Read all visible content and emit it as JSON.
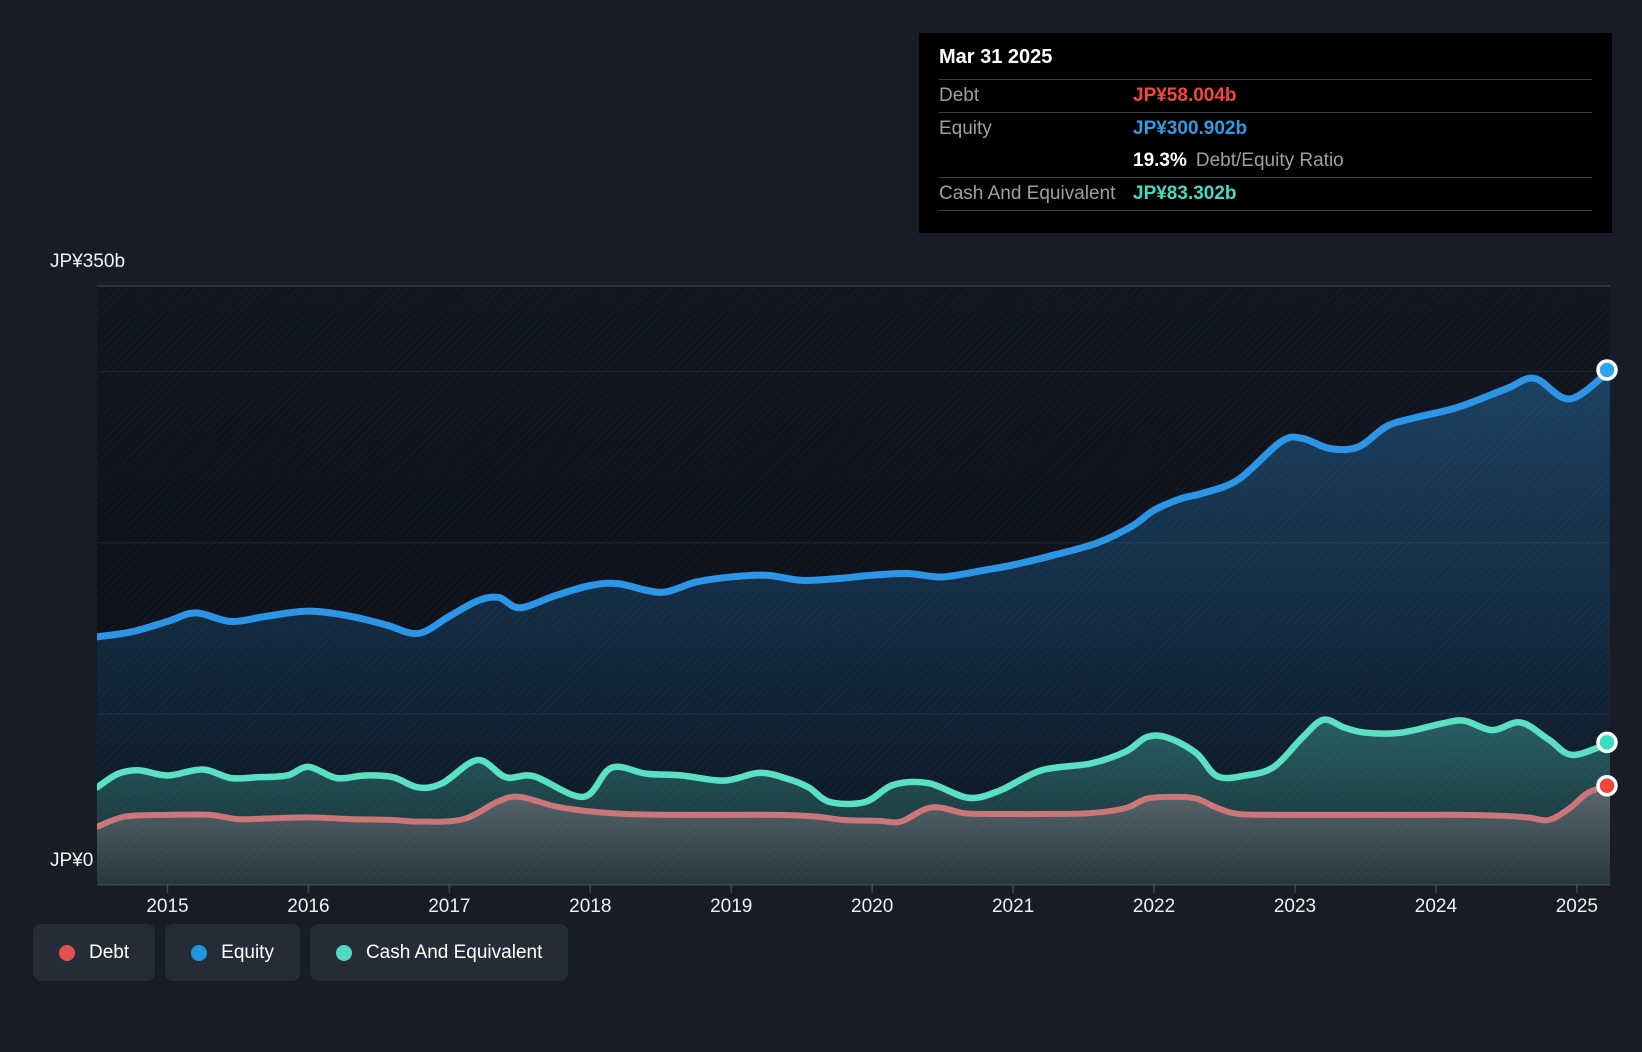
{
  "page": {
    "background": "#171c26"
  },
  "tooltip": {
    "title": "Mar 31 2025",
    "debt": {
      "label": "Debt",
      "value": "JP¥58.004b",
      "color": "#f5453d"
    },
    "equity": {
      "label": "Equity",
      "value": "JP¥300.902b",
      "color": "#2e9be5"
    },
    "ratio": {
      "value": "19.3%",
      "label": "Debt/Equity Ratio"
    },
    "cash": {
      "label": "Cash And Equivalent",
      "value": "JP¥83.302b",
      "color": "#43dcc0"
    }
  },
  "legend": {
    "items": [
      {
        "id": "debt",
        "label": "Debt",
        "color": "#e4524d"
      },
      {
        "id": "equity",
        "label": "Equity",
        "color": "#2196dd"
      },
      {
        "id": "cash",
        "label": "Cash And Equivalent",
        "color": "#4fd9bf"
      }
    ]
  },
  "chart_data": {
    "type": "area",
    "title": "",
    "xlabel": "",
    "ylabel": "JP¥ billions",
    "x_range": [
      2014.5,
      2025.235
    ],
    "y_range": [
      0,
      350
    ],
    "grid_values": [
      350,
      300,
      200,
      100
    ],
    "y_axis_labels": [
      {
        "value": 350,
        "text": "JP¥350b"
      },
      {
        "value": 0,
        "text": "JP¥0"
      }
    ],
    "x_ticks": [
      {
        "value": 2015,
        "label": "2015"
      },
      {
        "value": 2016,
        "label": "2016"
      },
      {
        "value": 2017,
        "label": "2017"
      },
      {
        "value": 2018,
        "label": "2018"
      },
      {
        "value": 2019,
        "label": "2019"
      },
      {
        "value": 2020,
        "label": "2020"
      },
      {
        "value": 2021,
        "label": "2021"
      },
      {
        "value": 2022,
        "label": "2022"
      },
      {
        "value": 2023,
        "label": "2023"
      },
      {
        "value": 2024,
        "label": "2024"
      },
      {
        "value": 2025,
        "label": "2025"
      }
    ],
    "series": [
      {
        "name": "Equity",
        "id": "equity",
        "line_color": "#2d95e5",
        "dot_color": "#2ea3f2",
        "fill_top": "rgba(46,150,230,0.34)",
        "fill_bottom": "rgba(46,150,230,0.02)",
        "line_width": 7,
        "points": [
          [
            2014.5,
            145
          ],
          [
            2014.75,
            148
          ],
          [
            2015,
            154
          ],
          [
            2015.2,
            159
          ],
          [
            2015.45,
            154
          ],
          [
            2015.7,
            157
          ],
          [
            2016,
            160
          ],
          [
            2016.3,
            157
          ],
          [
            2016.55,
            152
          ],
          [
            2016.78,
            147
          ],
          [
            2017,
            157
          ],
          [
            2017.2,
            166
          ],
          [
            2017.35,
            168
          ],
          [
            2017.5,
            162
          ],
          [
            2017.75,
            169
          ],
          [
            2018,
            175
          ],
          [
            2018.2,
            176
          ],
          [
            2018.5,
            171
          ],
          [
            2018.75,
            177
          ],
          [
            2019,
            180
          ],
          [
            2019.25,
            181
          ],
          [
            2019.5,
            178
          ],
          [
            2019.75,
            179
          ],
          [
            2020,
            181
          ],
          [
            2020.25,
            182
          ],
          [
            2020.5,
            180
          ],
          [
            2020.8,
            184
          ],
          [
            2021,
            187
          ],
          [
            2021.3,
            193
          ],
          [
            2021.6,
            200
          ],
          [
            2021.85,
            210
          ],
          [
            2022,
            219
          ],
          [
            2022.2,
            226
          ],
          [
            2022.35,
            229
          ],
          [
            2022.6,
            237
          ],
          [
            2022.9,
            259
          ],
          [
            2023.05,
            261
          ],
          [
            2023.25,
            255
          ],
          [
            2023.45,
            256
          ],
          [
            2023.65,
            268
          ],
          [
            2023.85,
            273
          ],
          [
            2024.15,
            279
          ],
          [
            2024.5,
            290
          ],
          [
            2024.7,
            296
          ],
          [
            2024.95,
            284
          ],
          [
            2025.235,
            300.902
          ]
        ]
      },
      {
        "name": "Cash And Equivalent",
        "id": "cash",
        "line_color": "#5ce0c2",
        "dot_color": "#3adcc0",
        "fill_top": "rgba(90,224,198,0.32)",
        "fill_bottom": "rgba(90,224,198,0.10)",
        "line_width": 6.5,
        "points": [
          [
            2014.5,
            57
          ],
          [
            2014.65,
            65
          ],
          [
            2014.8,
            67
          ],
          [
            2015,
            64
          ],
          [
            2015.25,
            67.5
          ],
          [
            2015.45,
            62.5
          ],
          [
            2015.65,
            63
          ],
          [
            2015.85,
            64
          ],
          [
            2016,
            69
          ],
          [
            2016.2,
            62.5
          ],
          [
            2016.4,
            64
          ],
          [
            2016.6,
            63
          ],
          [
            2016.78,
            57
          ],
          [
            2016.95,
            59.5
          ],
          [
            2017.2,
            73
          ],
          [
            2017.4,
            63
          ],
          [
            2017.6,
            63.5
          ],
          [
            2017.95,
            51.5
          ],
          [
            2018.15,
            68.5
          ],
          [
            2018.4,
            65
          ],
          [
            2018.65,
            64
          ],
          [
            2018.95,
            61
          ],
          [
            2019.2,
            65.5
          ],
          [
            2019.4,
            62
          ],
          [
            2019.55,
            57
          ],
          [
            2019.7,
            48.5
          ],
          [
            2019.95,
            48.5
          ],
          [
            2020.15,
            58.5
          ],
          [
            2020.4,
            59.5
          ],
          [
            2020.68,
            51
          ],
          [
            2020.9,
            55
          ],
          [
            2021.2,
            67
          ],
          [
            2021.55,
            71
          ],
          [
            2021.8,
            78
          ],
          [
            2021.95,
            86.5
          ],
          [
            2022.1,
            86
          ],
          [
            2022.3,
            77
          ],
          [
            2022.45,
            63.5
          ],
          [
            2022.65,
            64
          ],
          [
            2022.85,
            69
          ],
          [
            2023.05,
            86
          ],
          [
            2023.2,
            96.5
          ],
          [
            2023.35,
            92
          ],
          [
            2023.5,
            89
          ],
          [
            2023.75,
            89
          ],
          [
            2024.05,
            94.5
          ],
          [
            2024.2,
            96
          ],
          [
            2024.4,
            90.5
          ],
          [
            2024.6,
            95
          ],
          [
            2024.8,
            85
          ],
          [
            2024.97,
            76
          ],
          [
            2025.235,
            83.302
          ]
        ]
      },
      {
        "name": "Debt",
        "id": "debt",
        "line_color": "#cb7678",
        "dot_color": "#f2423c",
        "fill_top": "rgba(230,170,175,0.30)",
        "fill_bottom": "rgba(185,165,175,0.12)",
        "line_width": 6,
        "points": [
          [
            2014.5,
            34
          ],
          [
            2014.7,
            40
          ],
          [
            2015,
            41
          ],
          [
            2015.3,
            41
          ],
          [
            2015.5,
            38.5
          ],
          [
            2015.75,
            39
          ],
          [
            2016,
            39.5
          ],
          [
            2016.3,
            38.5
          ],
          [
            2016.6,
            38
          ],
          [
            2016.8,
            37
          ],
          [
            2017.1,
            38.5
          ],
          [
            2017.35,
            49
          ],
          [
            2017.5,
            51.5
          ],
          [
            2017.75,
            46
          ],
          [
            2018,
            43
          ],
          [
            2018.25,
            41.5
          ],
          [
            2018.6,
            41
          ],
          [
            2019,
            41
          ],
          [
            2019.35,
            41
          ],
          [
            2019.6,
            40
          ],
          [
            2019.8,
            38
          ],
          [
            2020.05,
            37.5
          ],
          [
            2020.2,
            37
          ],
          [
            2020.38,
            44.5
          ],
          [
            2020.5,
            45
          ],
          [
            2020.65,
            42
          ],
          [
            2020.85,
            41.5
          ],
          [
            2021.2,
            41.5
          ],
          [
            2021.55,
            42
          ],
          [
            2021.8,
            45
          ],
          [
            2021.95,
            50.5
          ],
          [
            2022.15,
            51.5
          ],
          [
            2022.3,
            50.5
          ],
          [
            2022.45,
            45
          ],
          [
            2022.6,
            41.5
          ],
          [
            2022.9,
            41
          ],
          [
            2023.25,
            41
          ],
          [
            2023.6,
            41
          ],
          [
            2023.95,
            41
          ],
          [
            2024.2,
            41
          ],
          [
            2024.45,
            40.5
          ],
          [
            2024.65,
            39.5
          ],
          [
            2024.8,
            38
          ],
          [
            2024.95,
            45
          ],
          [
            2025.08,
            54
          ],
          [
            2025.235,
            58.004
          ]
        ]
      }
    ]
  }
}
